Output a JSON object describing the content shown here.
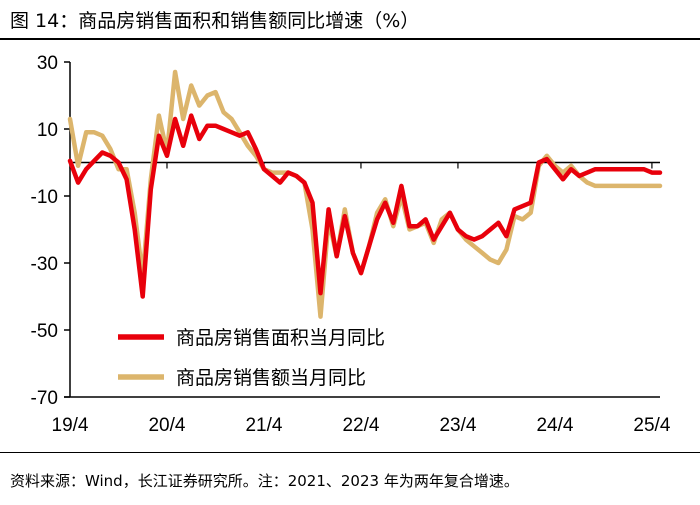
{
  "figure": {
    "title": "图 14：商品房销售面积和销售额同比增速（%）",
    "source": "资料来源：Wind，长江证券研究所。注：2021、2023 年为两年复合增速。"
  },
  "chart_data": {
    "type": "line",
    "title": "",
    "xlabel": "",
    "ylabel": "",
    "ylim": [
      -70,
      30
    ],
    "yticks": [
      30,
      10,
      -10,
      -30,
      -50,
      -70
    ],
    "xlim": [
      0,
      73
    ],
    "x_ticks": [
      {
        "index": 0,
        "label": "19/4"
      },
      {
        "index": 12,
        "label": "20/4"
      },
      {
        "index": 24,
        "label": "21/4"
      },
      {
        "index": 36,
        "label": "22/4"
      },
      {
        "index": 48,
        "label": "23/4"
      },
      {
        "index": 60,
        "label": "24/4"
      },
      {
        "index": 72,
        "label": "25/4"
      }
    ],
    "grid": false,
    "zero_line": true,
    "legend_position": "lower-left",
    "series": [
      {
        "name": "商品房销售面积当月同比",
        "color": "#e8000b",
        "values": [
          0.5,
          -6,
          -2,
          0.5,
          3,
          2,
          0,
          -5,
          -20,
          -40,
          -8,
          8,
          2,
          13,
          5,
          14,
          7,
          11,
          11,
          10,
          9,
          8,
          9,
          4,
          -2,
          -4,
          -6,
          -3,
          -4,
          -6,
          -12,
          -39,
          -14,
          -28,
          -16,
          -27,
          -33,
          -25,
          -17,
          -12,
          -18,
          -7,
          -19,
          -19,
          -17,
          -23,
          -19,
          -15,
          -20,
          -22,
          -23,
          -22,
          -20,
          -18,
          -22,
          -14,
          -13,
          -12,
          0,
          1,
          -2,
          -5,
          -2,
          -4,
          -3,
          -2,
          -2,
          -2,
          -2,
          -2,
          -2,
          -2,
          -3,
          -3
        ],
        "_note": ""
      },
      {
        "name": "商品房销售额当月同比",
        "color": "#dcb56c",
        "values": [
          13,
          -1,
          9,
          9,
          8,
          4,
          -2,
          -2,
          -15,
          -34,
          -5,
          14,
          3,
          27,
          13,
          23,
          17,
          20,
          21,
          15,
          13,
          9,
          5,
          2,
          -2,
          -3,
          -3,
          -3,
          -4,
          -6,
          -20,
          -46,
          -17,
          -28,
          -14,
          -27,
          -33,
          -25,
          -15,
          -11,
          -19,
          -10,
          -20,
          -19,
          -18,
          -24,
          -17,
          -15,
          -20,
          -23,
          -25,
          -27,
          -29,
          -30,
          -26,
          -16,
          -17,
          -15,
          -1,
          2,
          -1,
          -3,
          -1,
          -4,
          -6,
          -7,
          -7,
          -7,
          -7,
          -7,
          -7,
          -7,
          -7,
          -7
        ],
        "_note": ""
      }
    ]
  }
}
